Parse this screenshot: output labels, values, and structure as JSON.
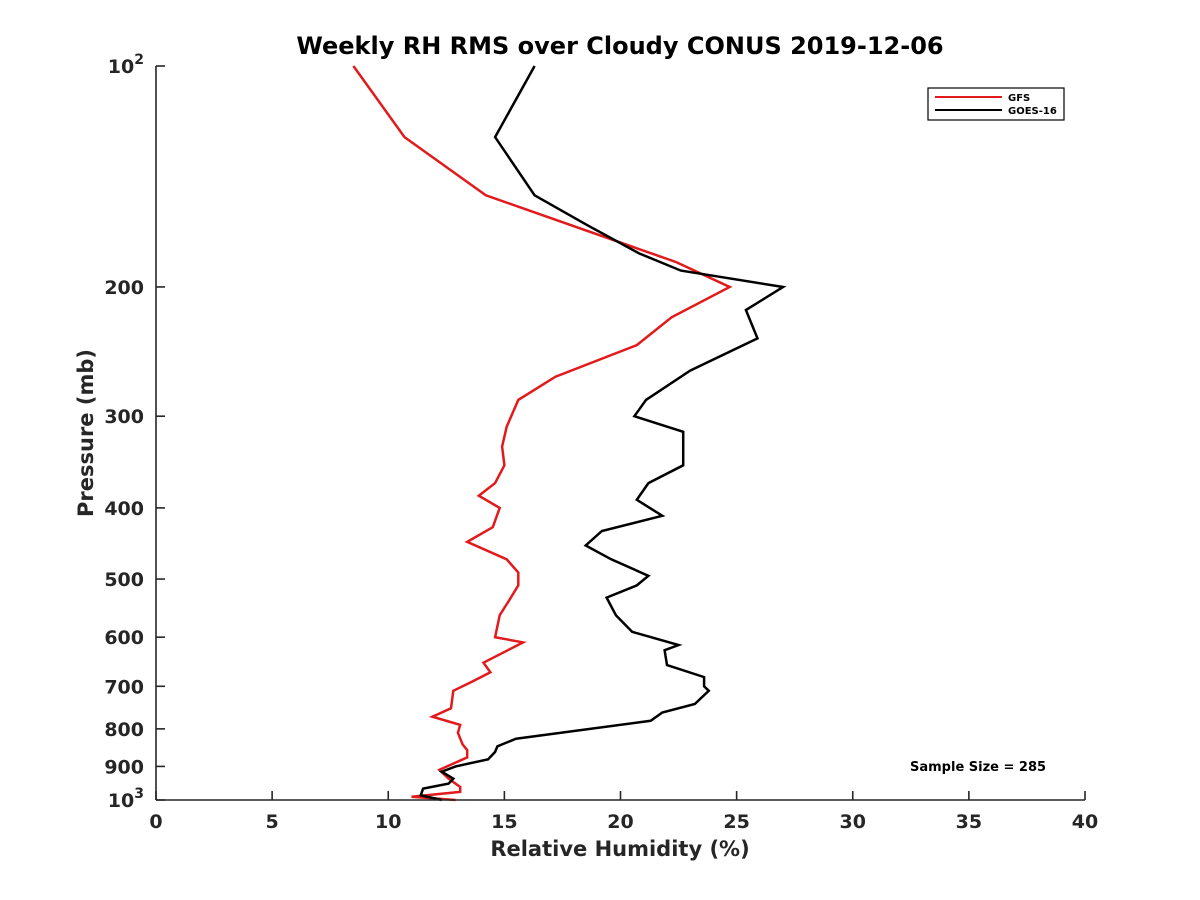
{
  "chart_data": {
    "type": "line",
    "title": "Weekly RH RMS over Cloudy CONUS 2019-12-06",
    "xlabel": "Relative Humidity (%)",
    "ylabel": "Pressure (mb)",
    "xlim": [
      0,
      40
    ],
    "ylim": [
      100,
      1000
    ],
    "y_scale": "log",
    "y_reversed": true,
    "grid": false,
    "legend_position": "top-right",
    "x_ticks": [
      {
        "value": 0,
        "label": "0"
      },
      {
        "value": 5,
        "label": "5"
      },
      {
        "value": 10,
        "label": "10"
      },
      {
        "value": 15,
        "label": "15"
      },
      {
        "value": 20,
        "label": "20"
      },
      {
        "value": 25,
        "label": "25"
      },
      {
        "value": 30,
        "label": "30"
      },
      {
        "value": 35,
        "label": "35"
      },
      {
        "value": 40,
        "label": "40"
      }
    ],
    "y_ticks": [
      {
        "value": 100,
        "base": "10",
        "exp": "2"
      },
      {
        "value": 200,
        "label": "200"
      },
      {
        "value": 300,
        "label": "300"
      },
      {
        "value": 400,
        "label": "400"
      },
      {
        "value": 500,
        "label": "500"
      },
      {
        "value": 600,
        "label": "600"
      },
      {
        "value": 700,
        "label": "700"
      },
      {
        "value": 800,
        "label": "800"
      },
      {
        "value": 900,
        "label": "900"
      },
      {
        "value": 1000,
        "base": "10",
        "exp": "3"
      }
    ],
    "series": [
      {
        "name": "GFS",
        "color": "#e31a1c",
        "points": [
          [
            8.5,
            100
          ],
          [
            10.7,
            125
          ],
          [
            14.2,
            150
          ],
          [
            22.4,
            185
          ],
          [
            24.7,
            200
          ],
          [
            22.2,
            220
          ],
          [
            20.7,
            240
          ],
          [
            17.2,
            265
          ],
          [
            15.6,
            285
          ],
          [
            15.1,
            310
          ],
          [
            14.9,
            330
          ],
          [
            15.0,
            350
          ],
          [
            14.6,
            370
          ],
          [
            13.9,
            385
          ],
          [
            14.8,
            400
          ],
          [
            14.5,
            425
          ],
          [
            13.4,
            445
          ],
          [
            15.1,
            470
          ],
          [
            15.6,
            490
          ],
          [
            15.6,
            510
          ],
          [
            15.2,
            535
          ],
          [
            14.8,
            560
          ],
          [
            14.6,
            600
          ],
          [
            15.8,
            610
          ],
          [
            14.1,
            650
          ],
          [
            14.4,
            670
          ],
          [
            13.6,
            690
          ],
          [
            12.8,
            710
          ],
          [
            12.7,
            750
          ],
          [
            11.9,
            770
          ],
          [
            13.1,
            790
          ],
          [
            13.0,
            810
          ],
          [
            13.2,
            840
          ],
          [
            13.4,
            855
          ],
          [
            13.4,
            875
          ],
          [
            12.2,
            910
          ],
          [
            12.6,
            935
          ],
          [
            13.1,
            960
          ],
          [
            13.1,
            975
          ],
          [
            11.0,
            990
          ],
          [
            12.9,
            1000
          ]
        ]
      },
      {
        "name": "GOES-16",
        "color": "#000000",
        "points": [
          [
            16.3,
            100
          ],
          [
            14.6,
            125
          ],
          [
            16.3,
            150
          ],
          [
            18.6,
            165
          ],
          [
            20.8,
            180
          ],
          [
            22.6,
            190
          ],
          [
            27.0,
            200
          ],
          [
            25.4,
            215
          ],
          [
            25.9,
            235
          ],
          [
            23.0,
            260
          ],
          [
            21.1,
            285
          ],
          [
            20.6,
            300
          ],
          [
            22.7,
            315
          ],
          [
            22.7,
            350
          ],
          [
            21.2,
            370
          ],
          [
            20.7,
            390
          ],
          [
            21.8,
            410
          ],
          [
            19.2,
            430
          ],
          [
            18.5,
            450
          ],
          [
            19.6,
            470
          ],
          [
            21.2,
            495
          ],
          [
            20.7,
            510
          ],
          [
            19.4,
            530
          ],
          [
            19.8,
            560
          ],
          [
            20.5,
            590
          ],
          [
            22.5,
            615
          ],
          [
            21.9,
            625
          ],
          [
            22.0,
            655
          ],
          [
            23.6,
            680
          ],
          [
            23.6,
            700
          ],
          [
            23.8,
            710
          ],
          [
            23.2,
            740
          ],
          [
            21.8,
            760
          ],
          [
            21.3,
            780
          ],
          [
            15.5,
            825
          ],
          [
            14.7,
            845
          ],
          [
            14.6,
            860
          ],
          [
            14.3,
            880
          ],
          [
            12.9,
            900
          ],
          [
            12.3,
            915
          ],
          [
            12.8,
            935
          ],
          [
            12.6,
            950
          ],
          [
            11.5,
            965
          ],
          [
            11.4,
            985
          ],
          [
            12.3,
            1000
          ]
        ]
      }
    ],
    "annotations": [
      {
        "text": "Sample Size = 285"
      }
    ]
  }
}
